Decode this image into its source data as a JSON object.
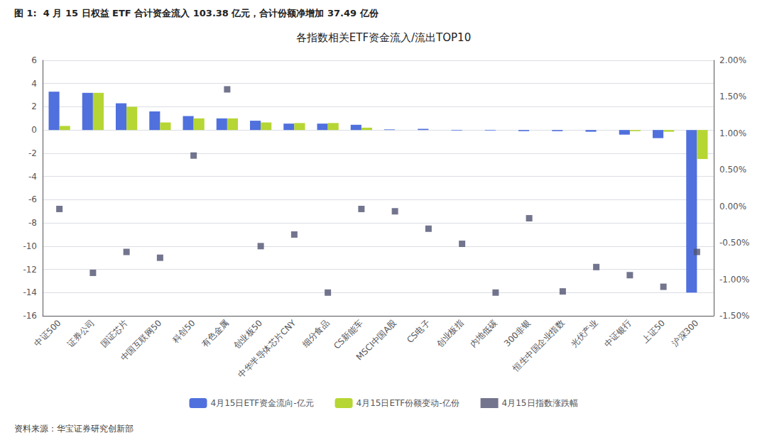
{
  "chart_data": {
    "type": "bar",
    "title": "各指数相关ETF资金流入/流出TOP10",
    "annotations": [
      "图 1:  4 月 15 日权益 ETF 合计资金流入 103.38 亿元，合计份额净增加 37.49 亿份",
      "资料来源：华宝证券研究创新部"
    ],
    "categories": [
      "中证500",
      "证券公司",
      "国证芯片",
      "中国互联网50",
      "科创50",
      "有色金属",
      "创业板50",
      "中华半导体芯片CNY",
      "细分食品",
      "CS新能车",
      "MSCI中国A股",
      "CS电子",
      "创业板指",
      "内地低碳",
      "300非银",
      "恒生中国企业指数",
      "光伏产业",
      "中证银行",
      "上证50",
      "沪深300"
    ],
    "series": [
      {
        "name": "4月15日ETF资金流向-亿元",
        "type": "bar",
        "values": [
          3.3,
          3.2,
          2.3,
          1.6,
          1.2,
          1.0,
          0.8,
          0.55,
          0.55,
          0.45,
          0.05,
          0.1,
          -0.05,
          -0.05,
          -0.1,
          -0.1,
          -0.15,
          -0.4,
          -0.7,
          -14.0
        ]
      },
      {
        "name": "4月15日ETF份额变动-亿份",
        "type": "bar",
        "values": [
          0.35,
          3.2,
          2.0,
          0.65,
          1.0,
          1.0,
          0.65,
          0.6,
          0.6,
          0.2,
          0.0,
          0.0,
          0.0,
          0.0,
          0.0,
          0.0,
          0.0,
          -0.1,
          -0.15,
          -2.5
        ]
      },
      {
        "name": "4月15日指数涨跌幅",
        "type": "scatter",
        "marker": "square",
        "values": [
          -6.8,
          -12.3,
          -10.5,
          -11.0,
          -2.2,
          3.5,
          -10.0,
          -9.0,
          -14.0,
          -6.8,
          -7.0,
          -8.5,
          -9.8,
          -14.0,
          -7.6,
          -13.9,
          -11.8,
          -12.5,
          -13.5,
          -10.5
        ]
      }
    ],
    "ylim": [
      -16,
      6
    ],
    "yticks": [
      -16,
      -14,
      -12,
      -10,
      -8,
      -6,
      -4,
      -2,
      0,
      2,
      4,
      6
    ],
    "y2lim": [
      -0.015,
      0.02
    ],
    "y2ticks": [
      {
        "value": -0.015,
        "label": "-1.50%"
      },
      {
        "value": -0.01,
        "label": "-1.00%"
      },
      {
        "value": -0.005,
        "label": "-0.50%"
      },
      {
        "value": 0.0,
        "label": "0.00%"
      },
      {
        "value": 0.005,
        "label": "0.50%"
      },
      {
        "value": 0.01,
        "label": "1.00%"
      },
      {
        "value": 0.015,
        "label": "1.50%"
      },
      {
        "value": 0.02,
        "label": "2.00%"
      }
    ],
    "grid": true,
    "legend": "bottom"
  }
}
